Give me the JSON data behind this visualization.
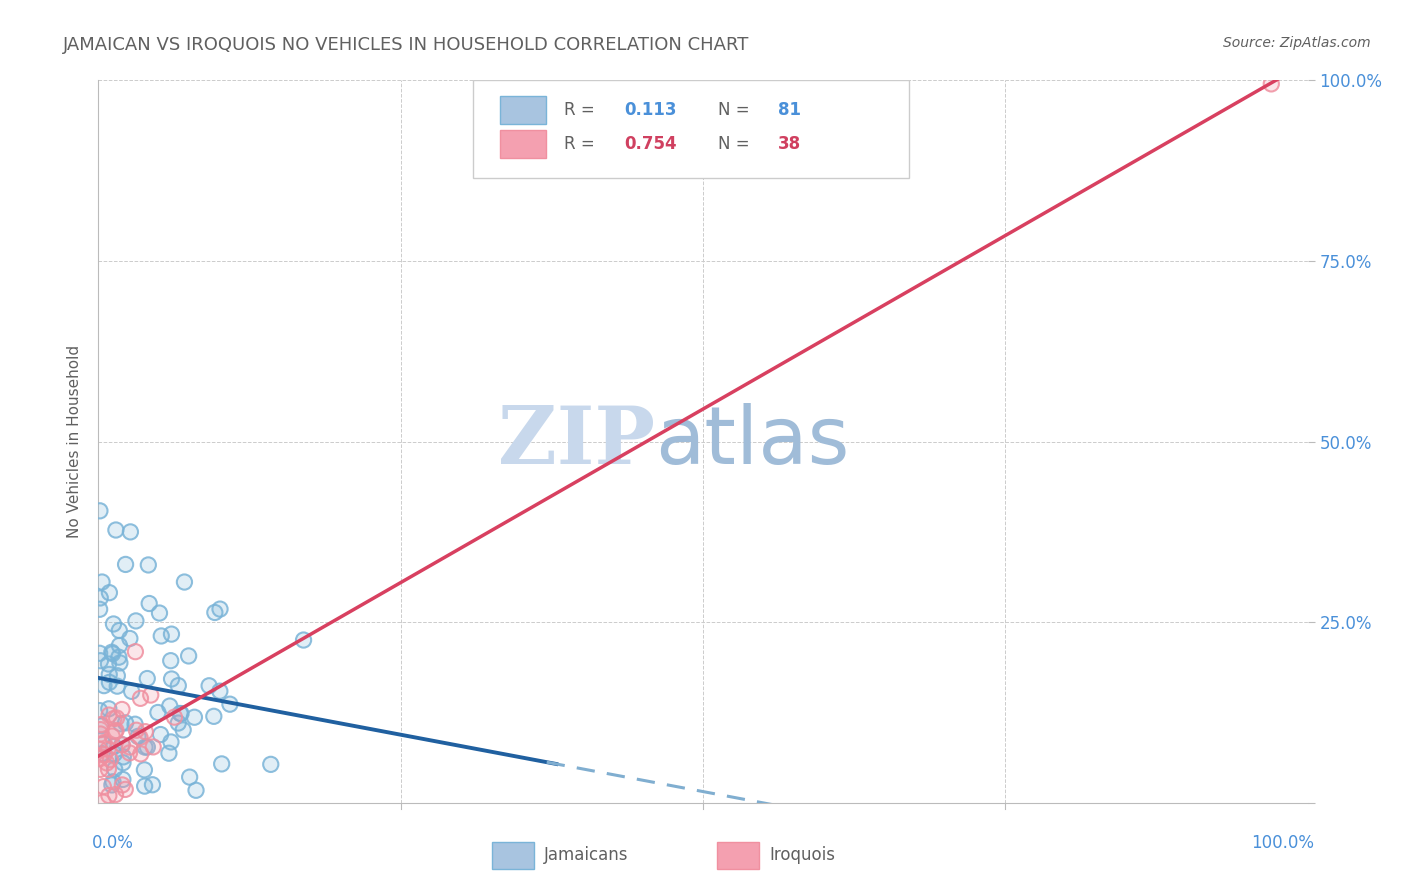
{
  "title": "JAMAICAN VS IROQUOIS NO VEHICLES IN HOUSEHOLD CORRELATION CHART",
  "source": "Source: ZipAtlas.com",
  "ylabel": "No Vehicles in Household",
  "xlabel": "",
  "xlim": [
    0.0,
    1.0
  ],
  "ylim": [
    0.0,
    1.0
  ],
  "legend1_color": "#a8c4e0",
  "legend2_color": "#f4a0b0",
  "jamaicans_color": "#7ab4d8",
  "iroquois_color": "#f090a0",
  "trend_blue_solid_color": "#2060a0",
  "trend_blue_dash_color": "#80aed0",
  "trend_pink_color": "#d84060",
  "watermark_zip_color": "#c8d8ec",
  "watermark_atlas_color": "#a0bcd8",
  "background_color": "#ffffff",
  "grid_color": "#cccccc",
  "title_color": "#606060",
  "axis_label_color": "#4a90d9",
  "figsize": [
    14.06,
    8.92
  ],
  "dpi": 100
}
